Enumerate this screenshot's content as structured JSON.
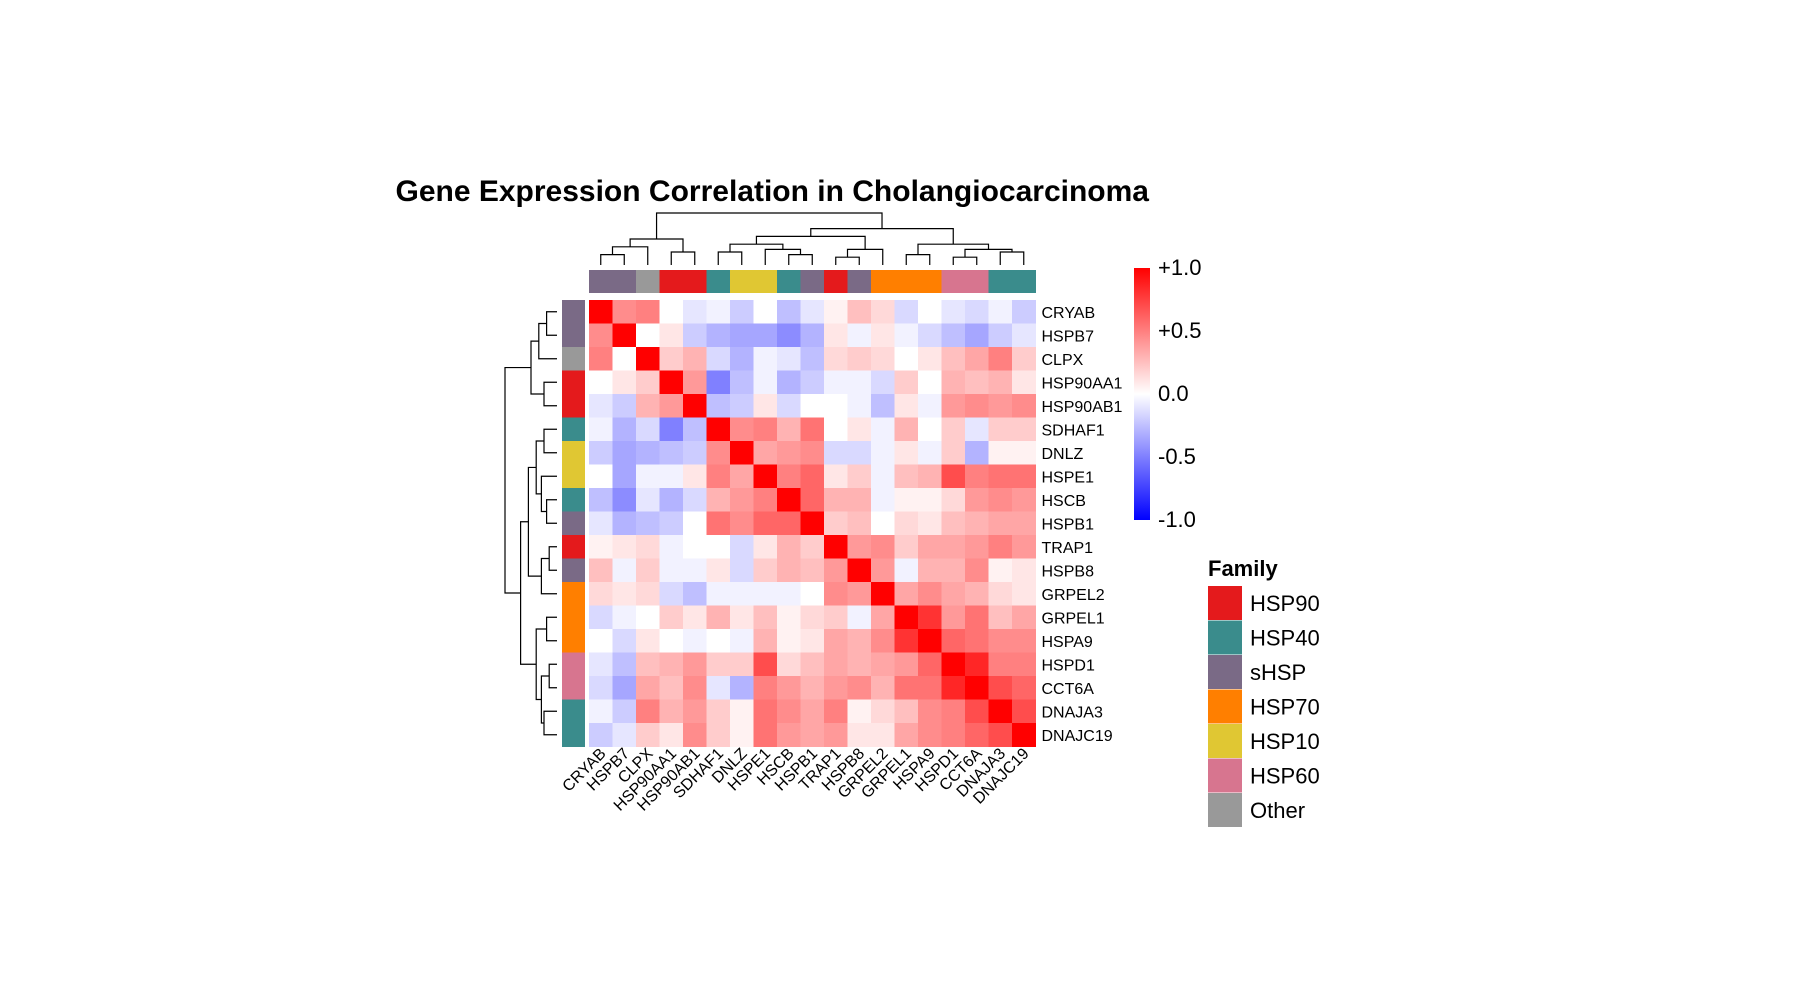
{
  "chart_data": {
    "type": "heatmap",
    "title": "Gene Expression Correlation in Cholangiocarcinoma",
    "genes": [
      "CRYAB",
      "HSPB7",
      "CLPX",
      "HSP90AA1",
      "HSP90AB1",
      "SDHAF1",
      "DNLZ",
      "HSPE1",
      "HSCB",
      "HSPB1",
      "TRAP1",
      "HSPB8",
      "GRPEL2",
      "GRPEL1",
      "HSPA9",
      "HSPD1",
      "CCT6A",
      "DNAJA3",
      "DNAJC19"
    ],
    "gene_family": [
      "sHSP",
      "sHSP",
      "Other",
      "HSP90",
      "HSP90",
      "HSP40",
      "HSP10",
      "HSP10",
      "HSP40",
      "sHSP",
      "HSP90",
      "sHSP",
      "HSP70",
      "HSP70",
      "HSP70",
      "HSP60",
      "HSP60",
      "HSP40",
      "HSP40"
    ],
    "values": [
      [
        1.0,
        0.45,
        0.5,
        0.0,
        -0.1,
        -0.05,
        -0.2,
        0.0,
        -0.25,
        -0.1,
        0.05,
        0.25,
        0.15,
        -0.15,
        0.0,
        -0.1,
        -0.15,
        -0.05,
        -0.2
      ],
      [
        0.45,
        1.0,
        0.0,
        0.1,
        -0.2,
        -0.3,
        -0.35,
        -0.35,
        -0.45,
        -0.3,
        0.1,
        -0.05,
        0.1,
        -0.05,
        -0.15,
        -0.25,
        -0.35,
        -0.2,
        -0.1
      ],
      [
        0.5,
        0.0,
        1.0,
        0.2,
        0.3,
        -0.15,
        -0.3,
        -0.05,
        -0.1,
        -0.25,
        0.15,
        0.2,
        0.15,
        0.0,
        0.1,
        0.25,
        0.35,
        0.5,
        0.2
      ],
      [
        0.0,
        0.1,
        0.2,
        1.0,
        0.4,
        -0.5,
        -0.25,
        -0.05,
        -0.3,
        -0.2,
        -0.05,
        -0.05,
        -0.15,
        0.2,
        0.0,
        0.3,
        0.25,
        0.3,
        0.1
      ],
      [
        -0.1,
        -0.2,
        0.3,
        0.4,
        1.0,
        -0.25,
        -0.2,
        0.1,
        -0.15,
        0.0,
        0.0,
        -0.05,
        -0.25,
        0.1,
        -0.05,
        0.4,
        0.45,
        0.4,
        0.45
      ],
      [
        -0.05,
        -0.3,
        -0.15,
        -0.5,
        -0.25,
        1.0,
        0.45,
        0.5,
        0.3,
        0.55,
        0.0,
        0.1,
        -0.05,
        0.3,
        0.0,
        0.2,
        -0.1,
        0.2,
        0.2
      ],
      [
        -0.2,
        -0.35,
        -0.3,
        -0.25,
        -0.2,
        0.45,
        1.0,
        0.35,
        0.4,
        0.45,
        -0.15,
        -0.15,
        -0.05,
        0.1,
        -0.05,
        0.2,
        -0.3,
        0.05,
        0.05
      ],
      [
        0.0,
        -0.35,
        -0.05,
        -0.05,
        0.1,
        0.5,
        0.35,
        1.0,
        0.5,
        0.6,
        0.1,
        0.2,
        -0.05,
        0.25,
        0.3,
        0.7,
        0.5,
        0.55,
        0.55
      ],
      [
        -0.25,
        -0.45,
        -0.1,
        -0.3,
        -0.15,
        0.3,
        0.4,
        0.5,
        1.0,
        0.6,
        0.3,
        0.3,
        -0.05,
        0.05,
        0.05,
        0.15,
        0.4,
        0.45,
        0.4
      ],
      [
        -0.1,
        -0.3,
        -0.25,
        -0.2,
        0.0,
        0.55,
        0.45,
        0.6,
        0.6,
        1.0,
        0.2,
        0.25,
        0.0,
        0.15,
        0.1,
        0.25,
        0.3,
        0.35,
        0.35
      ],
      [
        0.05,
        0.1,
        0.15,
        -0.05,
        0.0,
        0.0,
        -0.15,
        0.1,
        0.3,
        0.2,
        1.0,
        0.4,
        0.45,
        0.2,
        0.35,
        0.35,
        0.4,
        0.5,
        0.4
      ],
      [
        0.25,
        -0.05,
        0.2,
        -0.05,
        -0.05,
        0.1,
        -0.15,
        0.2,
        0.3,
        0.25,
        0.4,
        1.0,
        0.4,
        -0.05,
        0.3,
        0.3,
        0.45,
        0.05,
        0.1
      ],
      [
        0.15,
        0.1,
        0.15,
        -0.15,
        -0.25,
        -0.05,
        -0.05,
        -0.05,
        -0.05,
        0.0,
        0.45,
        0.4,
        1.0,
        0.35,
        0.45,
        0.35,
        0.3,
        0.15,
        0.1
      ],
      [
        -0.15,
        -0.05,
        0.0,
        0.2,
        0.1,
        0.3,
        0.1,
        0.25,
        0.05,
        0.15,
        0.2,
        -0.05,
        0.35,
        1.0,
        0.8,
        0.4,
        0.55,
        0.25,
        0.35
      ],
      [
        0.0,
        -0.15,
        0.1,
        0.0,
        -0.05,
        0.0,
        -0.05,
        0.3,
        0.05,
        0.1,
        0.35,
        0.3,
        0.45,
        0.8,
        1.0,
        0.6,
        0.55,
        0.45,
        0.45
      ],
      [
        -0.1,
        -0.25,
        0.25,
        0.3,
        0.4,
        0.2,
        0.2,
        0.7,
        0.15,
        0.25,
        0.35,
        0.3,
        0.35,
        0.4,
        0.6,
        1.0,
        0.85,
        0.5,
        0.5
      ],
      [
        -0.15,
        -0.35,
        0.35,
        0.25,
        0.45,
        -0.1,
        -0.3,
        0.5,
        0.4,
        0.3,
        0.4,
        0.45,
        0.3,
        0.55,
        0.55,
        0.85,
        1.0,
        0.7,
        0.6
      ],
      [
        -0.05,
        -0.2,
        0.5,
        0.3,
        0.4,
        0.2,
        0.05,
        0.55,
        0.45,
        0.35,
        0.5,
        0.05,
        0.15,
        0.25,
        0.45,
        0.5,
        0.7,
        1.0,
        0.7
      ],
      [
        -0.2,
        -0.1,
        0.2,
        0.1,
        0.45,
        0.2,
        0.05,
        0.55,
        0.4,
        0.35,
        0.4,
        0.1,
        0.1,
        0.35,
        0.45,
        0.5,
        0.6,
        0.7,
        1.0
      ]
    ],
    "color_scale": {
      "range": [
        -1,
        1
      ],
      "colors": [
        "#0000ff",
        "#ffffff",
        "#ff0000"
      ],
      "tick_labels": [
        "+1.0",
        "+0.5",
        "0.0",
        "-0.5",
        "-1.0"
      ]
    },
    "legend": {
      "title": "Family",
      "placement": "right",
      "entries": [
        {
          "label": "HSP90",
          "color": "#e41a1c"
        },
        {
          "label": "HSP40",
          "color": "#3a8c8c"
        },
        {
          "label": "sHSP",
          "color": "#7a6a86"
        },
        {
          "label": "HSP70",
          "color": "#ff7f00"
        },
        {
          "label": "HSP10",
          "color": "#e0c733"
        },
        {
          "label": "HSP60",
          "color": "#d7758f"
        },
        {
          "label": "Other",
          "color": "#999999"
        }
      ]
    },
    "clustering": {
      "merges": [
        [
          0,
          1
        ],
        [
          2,
          "m0"
        ],
        [
          3,
          4
        ],
        [
          "m1",
          "m2"
        ],
        [
          8,
          9
        ],
        [
          7,
          "m4"
        ],
        [
          5,
          6
        ],
        [
          "m5",
          "m6"
        ],
        [
          10,
          11
        ],
        [
          12,
          "m8"
        ],
        [
          "m7",
          "m9"
        ],
        [
          13,
          14
        ],
        [
          15,
          16
        ],
        [
          17,
          18
        ],
        [
          "m12",
          "m13"
        ],
        [
          "m11",
          "m14"
        ],
        [
          "m10",
          "m15"
        ],
        [
          "m3",
          "m16"
        ]
      ],
      "heights": [
        0.2,
        0.35,
        0.25,
        0.5,
        0.2,
        0.3,
        0.25,
        0.4,
        0.15,
        0.3,
        0.55,
        0.2,
        0.15,
        0.25,
        0.3,
        0.4,
        0.7,
        1.0
      ]
    }
  }
}
